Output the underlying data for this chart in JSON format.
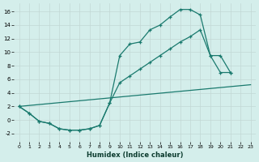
{
  "xlabel": "Humidex (Indice chaleur)",
  "bg_color": "#d4eeeb",
  "grid_color": "#c2d8d5",
  "line_color": "#1a7a6e",
  "xlim": [
    -0.5,
    23.5
  ],
  "ylim": [
    -3.2,
    17.2
  ],
  "xticks": [
    0,
    1,
    2,
    3,
    4,
    5,
    6,
    7,
    8,
    9,
    10,
    11,
    12,
    13,
    14,
    15,
    16,
    17,
    18,
    19,
    20,
    21,
    22,
    23
  ],
  "yticks": [
    -2,
    0,
    2,
    4,
    6,
    8,
    10,
    12,
    14,
    16
  ],
  "curve1_x": [
    0,
    1,
    2,
    3,
    4,
    5,
    6,
    7,
    8,
    9,
    10,
    11,
    12,
    13,
    14,
    15,
    16,
    17,
    18,
    19,
    20,
    21
  ],
  "curve1_y": [
    2.0,
    1.0,
    -0.2,
    -0.5,
    -1.3,
    -1.5,
    -1.5,
    -1.3,
    -0.8,
    2.5,
    9.5,
    11.2,
    11.5,
    13.3,
    14.0,
    15.2,
    16.3,
    16.3,
    15.5,
    9.5,
    7.0,
    7.0
  ],
  "curve2_x": [
    0,
    1,
    2,
    3,
    4,
    5,
    6,
    7,
    8,
    9,
    10,
    11,
    12,
    13,
    14,
    15,
    16,
    17,
    18,
    19,
    20,
    21
  ],
  "curve2_y": [
    2.0,
    1.0,
    -0.2,
    -0.5,
    -1.3,
    -1.5,
    -1.5,
    -1.3,
    -0.8,
    2.5,
    5.5,
    6.5,
    7.5,
    8.5,
    9.5,
    10.5,
    11.5,
    12.3,
    13.3,
    9.5,
    9.5,
    7.0
  ],
  "curve3_x": [
    0,
    23
  ],
  "curve3_y": [
    2.0,
    5.2
  ]
}
